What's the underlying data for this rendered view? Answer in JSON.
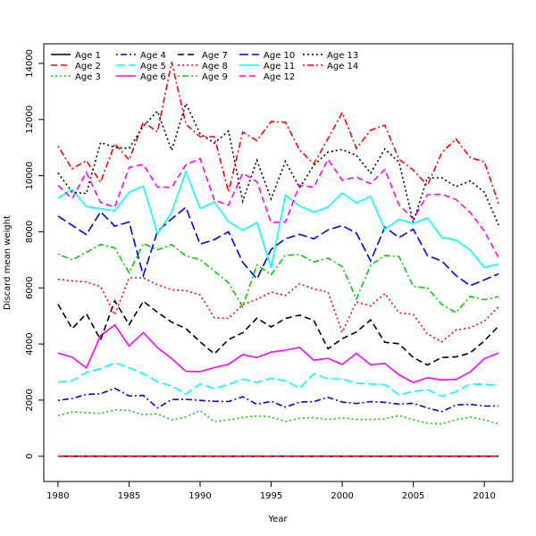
{
  "chart_data": {
    "type": "line",
    "title": "",
    "xlabel": "Year",
    "ylabel": "Discard mean weight",
    "xlim": [
      1979,
      2012
    ],
    "ylim": [
      -900,
      14700
    ],
    "xticks": [
      1980,
      1985,
      1990,
      1995,
      2000,
      2005,
      2010
    ],
    "yticks": [
      0,
      2000,
      4000,
      6000,
      8000,
      10000,
      12000,
      14000
    ],
    "legend_position": "top-left",
    "grid": false,
    "x": [
      1980,
      1981,
      1982,
      1983,
      1984,
      1985,
      1986,
      1987,
      1988,
      1989,
      1990,
      1991,
      1992,
      1993,
      1994,
      1995,
      1996,
      1997,
      1998,
      1999,
      2000,
      2001,
      2002,
      2003,
      2004,
      2005,
      2006,
      2007,
      2008,
      2009,
      2010,
      2011
    ],
    "series": [
      {
        "name": "Age 1",
        "color": "#000000",
        "dash": "solid",
        "values": [
          0,
          0,
          0,
          0,
          0,
          0,
          0,
          0,
          0,
          0,
          0,
          0,
          0,
          0,
          0,
          0,
          0,
          0,
          0,
          0,
          0,
          0,
          0,
          0,
          0,
          0,
          0,
          0,
          0,
          0,
          0,
          0
        ]
      },
      {
        "name": "Age 2",
        "color": "#ff0000",
        "dash": "dashed",
        "values": [
          0,
          0,
          0,
          0,
          0,
          0,
          0,
          0,
          0,
          0,
          0,
          0,
          0,
          0,
          0,
          0,
          0,
          0,
          0,
          0,
          0,
          0,
          0,
          0,
          0,
          0,
          0,
          0,
          0,
          0,
          0,
          0
        ]
      },
      {
        "name": "Age 3",
        "color": "#00cd00",
        "dash": "dotted",
        "values": [
          1450,
          1580,
          1550,
          1530,
          1650,
          1630,
          1480,
          1510,
          1300,
          1400,
          1630,
          1230,
          1300,
          1380,
          1440,
          1400,
          1240,
          1350,
          1380,
          1310,
          1370,
          1310,
          1310,
          1330,
          1450,
          1300,
          1180,
          1150,
          1300,
          1400,
          1300,
          1150
        ]
      },
      {
        "name": "Age 4",
        "color": "#0000ff",
        "dash": "dotdash",
        "values": [
          1990,
          2060,
          2200,
          2230,
          2420,
          2150,
          2170,
          1720,
          2020,
          2030,
          1990,
          1960,
          1950,
          2120,
          1850,
          1960,
          1750,
          1930,
          1950,
          2100,
          1930,
          1880,
          1950,
          1920,
          1860,
          1890,
          1720,
          1590,
          1830,
          1850,
          1790,
          1790
        ]
      },
      {
        "name": "Age 5",
        "color": "#00ffff",
        "dash": "longdash",
        "values": [
          2640,
          2680,
          2990,
          3120,
          3330,
          3160,
          2940,
          2660,
          2510,
          2210,
          2580,
          2410,
          2560,
          2750,
          2630,
          2780,
          2690,
          2430,
          2940,
          2760,
          2760,
          2600,
          2580,
          2550,
          2190,
          2310,
          2370,
          2130,
          2300,
          2580,
          2560,
          2520
        ]
      },
      {
        "name": "Age 6",
        "color": "#ff00ff",
        "dash": "solid",
        "values": [
          3680,
          3530,
          3150,
          4300,
          4680,
          3930,
          4410,
          3870,
          3480,
          3030,
          3020,
          3160,
          3280,
          3620,
          3520,
          3710,
          3780,
          3880,
          3420,
          3490,
          3270,
          3670,
          3260,
          3310,
          2900,
          2630,
          2800,
          2720,
          2740,
          3000,
          3480,
          3680
        ]
      },
      {
        "name": "Age 7",
        "color": "#000000",
        "dash": "dashed",
        "values": [
          5420,
          4550,
          5080,
          4150,
          5540,
          4690,
          5520,
          5130,
          4780,
          4550,
          4080,
          3650,
          4160,
          4400,
          4920,
          4610,
          4910,
          5030,
          4840,
          3830,
          4190,
          4430,
          4860,
          4060,
          4010,
          3520,
          3250,
          3520,
          3540,
          3680,
          4110,
          4640
        ]
      },
      {
        "name": "Age 8",
        "color": "#ff0000",
        "dash": "dotted",
        "values": [
          6310,
          6250,
          6210,
          6050,
          5040,
          6360,
          6360,
          6110,
          5940,
          5900,
          5750,
          4940,
          4910,
          5400,
          5590,
          5850,
          5730,
          6150,
          5960,
          5850,
          4420,
          5500,
          5360,
          5800,
          5110,
          5060,
          4360,
          4080,
          4500,
          4580,
          4810,
          5330
        ]
      },
      {
        "name": "Age 9",
        "color": "#00cd00",
        "dash": "dotdash",
        "values": [
          7210,
          7000,
          7270,
          7550,
          7430,
          6540,
          7580,
          7360,
          7540,
          7140,
          7010,
          6600,
          6180,
          5330,
          6820,
          6470,
          7160,
          7190,
          6930,
          7060,
          6760,
          5600,
          6810,
          7150,
          7120,
          6050,
          6000,
          5410,
          5120,
          5700,
          5580,
          5690
        ]
      },
      {
        "name": "Age 10",
        "color": "#0000ff",
        "dash": "longdash",
        "values": [
          8560,
          8230,
          7900,
          8710,
          8200,
          8350,
          6440,
          8020,
          8460,
          8870,
          7560,
          7720,
          8000,
          6910,
          6320,
          7370,
          7750,
          7910,
          7750,
          8070,
          8220,
          7950,
          6960,
          8170,
          7790,
          8090,
          7150,
          6960,
          6440,
          6080,
          6290,
          6500
        ]
      },
      {
        "name": "Age 11",
        "color": "#00ffff",
        "dash": "solid",
        "values": [
          9200,
          9510,
          8900,
          8820,
          8750,
          9410,
          9630,
          7930,
          8700,
          10150,
          8830,
          9060,
          8360,
          8060,
          8330,
          6720,
          9310,
          8920,
          8700,
          8880,
          9380,
          9030,
          9260,
          8080,
          8440,
          8300,
          8490,
          7800,
          7710,
          7350,
          6730,
          6850
        ]
      },
      {
        "name": "Age 12",
        "color": "#ff00ff",
        "dash": "dashed",
        "values": [
          9650,
          9180,
          10120,
          9040,
          8880,
          10290,
          10400,
          9600,
          9580,
          10390,
          10610,
          9130,
          8950,
          10090,
          9780,
          8330,
          8350,
          9660,
          9590,
          10580,
          9840,
          9950,
          9710,
          10220,
          8960,
          8470,
          9320,
          9340,
          9150,
          8690,
          8020,
          7080
        ]
      },
      {
        "name": "Age 13",
        "color": "#000000",
        "dash": "dotted",
        "values": [
          10100,
          9410,
          9360,
          11180,
          11010,
          10970,
          11760,
          12300,
          10900,
          12570,
          11490,
          11160,
          11590,
          9090,
          10550,
          9170,
          10510,
          9570,
          10370,
          10840,
          10930,
          10720,
          10090,
          10950,
          10480,
          8340,
          9930,
          9920,
          9610,
          9810,
          9410,
          8240
        ]
      },
      {
        "name": "Age 14",
        "color": "#ff0000",
        "dash": "dotdash",
        "values": [
          11050,
          10240,
          10540,
          9770,
          11140,
          10560,
          11910,
          11560,
          14050,
          11830,
          11390,
          11390,
          9420,
          11550,
          11250,
          11930,
          11900,
          10910,
          10420,
          11320,
          12250,
          10970,
          11620,
          11800,
          10580,
          10200,
          9650,
          10820,
          11310,
          10650,
          10490,
          9000
        ]
      }
    ]
  }
}
